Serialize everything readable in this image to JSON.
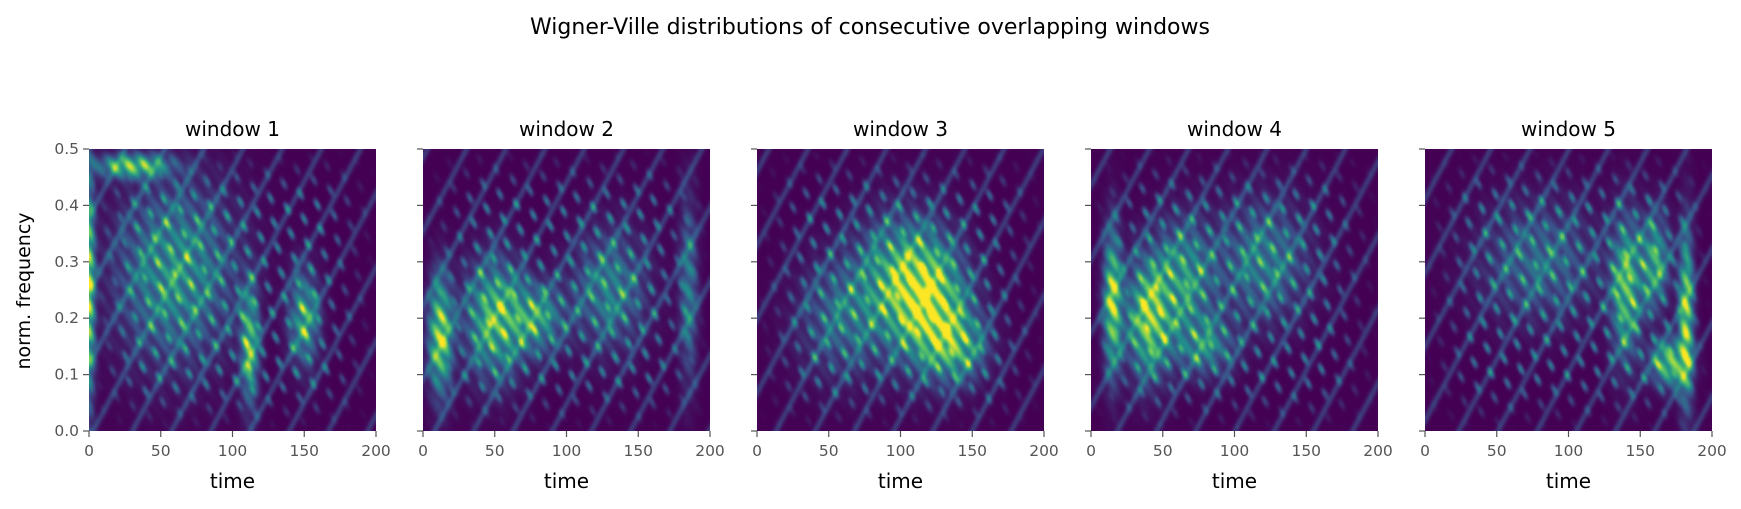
{
  "chart_data": {
    "type": "heatmap",
    "title": "Wigner-Ville distributions of consecutive overlapping windows",
    "colormap": "viridis",
    "colors": [
      "#440154",
      "#3b528b",
      "#21918c",
      "#5ec962",
      "#fde725"
    ],
    "xlabel": "time",
    "ylabel": "norm. frequency",
    "xlim": [
      0,
      200
    ],
    "ylim": [
      0,
      0.5
    ],
    "xticks": [
      "0",
      "50",
      "100",
      "150",
      "200"
    ],
    "yticks": [
      "0.0",
      "0.1",
      "0.2",
      "0.3",
      "0.4",
      "0.5"
    ],
    "panels": [
      {
        "title": "window 1",
        "features": [
          {
            "t": 0,
            "f": 0.25,
            "w": 4,
            "h": 0.2,
            "a": 1.0
          },
          {
            "t": 30,
            "f": 0.47,
            "w": 25,
            "h": 0.02,
            "a": 0.9
          },
          {
            "t": 112,
            "f": 0.15,
            "w": 6,
            "h": 0.1,
            "a": 0.8
          },
          {
            "t": 150,
            "f": 0.2,
            "w": 10,
            "h": 0.08,
            "a": 0.7
          },
          {
            "t": 60,
            "f": 0.28,
            "w": 40,
            "h": 0.15,
            "a": 0.6
          }
        ]
      },
      {
        "title": "window 2",
        "features": [
          {
            "t": 12,
            "f": 0.17,
            "w": 8,
            "h": 0.1,
            "a": 1.0
          },
          {
            "t": 50,
            "f": 0.2,
            "w": 20,
            "h": 0.1,
            "a": 0.8
          },
          {
            "t": 80,
            "f": 0.2,
            "w": 18,
            "h": 0.06,
            "a": 0.6
          },
          {
            "t": 130,
            "f": 0.25,
            "w": 25,
            "h": 0.1,
            "a": 0.5
          },
          {
            "t": 185,
            "f": 0.25,
            "w": 6,
            "h": 0.15,
            "a": 0.5
          }
        ]
      },
      {
        "title": "window 3",
        "features": [
          {
            "t": 120,
            "f": 0.22,
            "w": 25,
            "h": 0.1,
            "a": 0.9
          },
          {
            "t": 100,
            "f": 0.28,
            "w": 30,
            "h": 0.1,
            "a": 0.6
          },
          {
            "t": 140,
            "f": 0.15,
            "w": 20,
            "h": 0.06,
            "a": 0.6
          },
          {
            "t": 60,
            "f": 0.2,
            "w": 30,
            "h": 0.1,
            "a": 0.4
          }
        ]
      },
      {
        "title": "window 4",
        "features": [
          {
            "t": 15,
            "f": 0.23,
            "w": 6,
            "h": 0.12,
            "a": 1.0
          },
          {
            "t": 40,
            "f": 0.2,
            "w": 15,
            "h": 0.1,
            "a": 0.9
          },
          {
            "t": 65,
            "f": 0.27,
            "w": 20,
            "h": 0.1,
            "a": 0.6
          },
          {
            "t": 120,
            "f": 0.3,
            "w": 30,
            "h": 0.1,
            "a": 0.5
          },
          {
            "t": 80,
            "f": 0.15,
            "w": 20,
            "h": 0.05,
            "a": 0.5
          }
        ]
      },
      {
        "title": "window 5",
        "features": [
          {
            "t": 182,
            "f": 0.2,
            "w": 5,
            "h": 0.15,
            "a": 1.0
          },
          {
            "t": 170,
            "f": 0.12,
            "w": 12,
            "h": 0.04,
            "a": 0.9
          },
          {
            "t": 140,
            "f": 0.25,
            "w": 10,
            "h": 0.12,
            "a": 0.8
          },
          {
            "t": 160,
            "f": 0.3,
            "w": 10,
            "h": 0.08,
            "a": 0.7
          },
          {
            "t": 80,
            "f": 0.3,
            "w": 40,
            "h": 0.1,
            "a": 0.4
          }
        ]
      }
    ]
  }
}
